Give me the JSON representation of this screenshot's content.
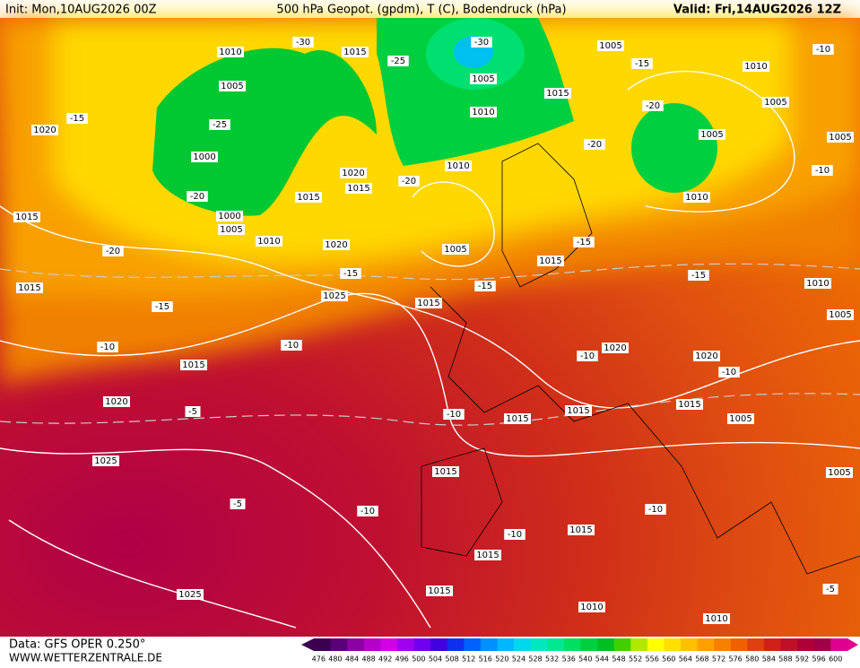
{
  "header": {
    "init": "Init: Mon,10AUG2026 00Z",
    "title": "500 hPa Geopot. (gpdm), T (C), Bodendruck (hPa)",
    "valid": "Valid: Fri,14AUG2026 12Z"
  },
  "footer": {
    "source": "Data: GFS OPER 0.250°",
    "site": "WWW.WETTERZENTRALE.DE"
  },
  "colorbar": {
    "levels": [
      476,
      480,
      484,
      488,
      492,
      496,
      500,
      504,
      508,
      512,
      516,
      520,
      524,
      528,
      532,
      536,
      540,
      544,
      548,
      552,
      556,
      560,
      564,
      568,
      572,
      576,
      580,
      584,
      588,
      592,
      596,
      600
    ],
    "colors": [
      "#3c0050",
      "#5a0078",
      "#8a00a0",
      "#b400c8",
      "#d200e6",
      "#a000f0",
      "#7000f0",
      "#4000e0",
      "#1030f0",
      "#0060ff",
      "#0090ff",
      "#00b8ff",
      "#00d8f0",
      "#00e8c0",
      "#00e890",
      "#00e060",
      "#00d040",
      "#00c020",
      "#40d000",
      "#b0e800",
      "#ffff00",
      "#ffe000",
      "#ffc000",
      "#ffa000",
      "#f88000",
      "#f06000",
      "#e04010",
      "#d02018",
      "#c01028",
      "#b00038",
      "#a00048",
      "#e00090"
    ]
  },
  "map_labels": [
    "1010",
    "1005",
    "1000",
    "1000",
    "1005",
    "1010",
    "-20",
    "-25",
    "1020",
    "-15",
    "1015",
    "-20",
    "1015",
    "-15",
    "-10",
    "1015",
    "1020",
    "-5",
    "1025",
    "-5",
    "1025",
    "1015",
    "-25",
    "-30",
    "-30",
    "1005",
    "1010",
    "1015",
    "1020",
    "1015",
    "-20",
    "1015",
    "1010",
    "1005",
    "1020",
    "-15",
    "1025",
    "1015",
    "-15",
    "1015",
    "-10",
    "1005",
    "-15",
    "1010",
    "-10",
    "1005",
    "-20",
    "1005",
    "1005",
    "1010",
    "-20",
    "-10",
    "-15",
    "-15",
    "1010",
    "1005",
    "1020",
    "-10",
    "1020",
    "-10",
    "1015",
    "1005",
    "1015",
    "1015",
    "-10",
    "1015",
    "-10",
    "-10",
    "1015",
    "1015",
    "-10",
    "1005",
    "1015",
    "1010",
    "1010",
    "-5"
  ]
}
